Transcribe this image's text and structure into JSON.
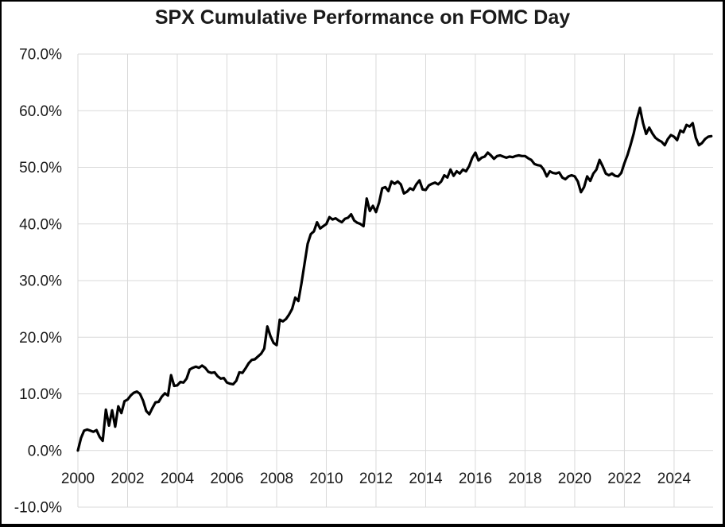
{
  "window": {
    "background": "#ffffff",
    "border_color": "#000000"
  },
  "chart_data": {
    "type": "line",
    "title": "SPX Cumulative Performance on FOMC Day",
    "xlabel": "",
    "ylabel": "",
    "legend_position": "none",
    "grid": true,
    "grid_color": "#d9d9d9",
    "line_color": "#000000",
    "title_color": "#1a1a1a",
    "tick_color": "#1a1a1a",
    "x_axis": {
      "tick_labels": [
        "2000",
        "2002",
        "2004",
        "2006",
        "2008",
        "2010",
        "2012",
        "2014",
        "2016",
        "2018",
        "2020",
        "2022",
        "2024"
      ],
      "tick_values": [
        2000,
        2002,
        2004,
        2006,
        2008,
        2010,
        2012,
        2014,
        2016,
        2018,
        2020,
        2022,
        2024
      ],
      "range": [
        2000,
        2025.57
      ]
    },
    "y_axis": {
      "tick_labels": [
        "70.0%",
        "60.0%",
        "50.0%",
        "40.0%",
        "30.0%",
        "20.0%",
        "10.0%",
        "0.0%",
        "-10.0%"
      ],
      "tick_values": [
        70,
        60,
        50,
        40,
        30,
        20,
        10,
        0,
        -10
      ],
      "range": [
        -10,
        70
      ]
    },
    "series": [
      {
        "unit": "percent",
        "x_start_year": 2000.0,
        "x_step_years": 0.125,
        "values": [
          0.0,
          2.2,
          3.5,
          3.7,
          3.5,
          3.3,
          3.6,
          2.4,
          1.7,
          7.2,
          4.4,
          7.1,
          4.2,
          7.8,
          6.6,
          8.7,
          9.0,
          9.7,
          10.2,
          10.4,
          10.0,
          8.8,
          7.0,
          6.4,
          7.5,
          8.5,
          8.6,
          9.5,
          10.1,
          9.7,
          13.3,
          11.4,
          11.5,
          12.1,
          12.0,
          12.7,
          14.3,
          14.6,
          14.8,
          14.6,
          15.0,
          14.6,
          13.9,
          13.7,
          13.8,
          13.1,
          12.7,
          12.8,
          12.0,
          11.8,
          11.7,
          12.3,
          13.8,
          13.7,
          14.5,
          15.4,
          16.0,
          16.1,
          16.6,
          17.1,
          18.0,
          21.9,
          20.2,
          19.0,
          18.6,
          23.1,
          22.8,
          23.2,
          24.0,
          25.0,
          27.0,
          26.4,
          29.5,
          33.0,
          36.5,
          38.2,
          38.7,
          40.3,
          39.2,
          39.6,
          40.0,
          41.2,
          40.8,
          41.0,
          40.6,
          40.3,
          40.9,
          41.1,
          41.7,
          40.6,
          40.2,
          40.0,
          39.6,
          44.5,
          42.3,
          43.2,
          42.1,
          43.8,
          46.3,
          46.5,
          45.8,
          47.5,
          47.1,
          47.5,
          47.0,
          45.4,
          45.7,
          46.3,
          46.0,
          47.0,
          47.7,
          46.1,
          46.0,
          46.8,
          47.1,
          47.3,
          47.0,
          47.5,
          48.6,
          48.2,
          49.6,
          48.5,
          49.3,
          48.9,
          49.6,
          49.3,
          50.2,
          51.7,
          52.6,
          51.2,
          51.7,
          51.9,
          52.6,
          52.1,
          51.5,
          52.0,
          52.1,
          51.9,
          51.7,
          51.9,
          51.8,
          52.0,
          52.1,
          52.0,
          52.0,
          51.6,
          51.3,
          50.6,
          50.4,
          50.3,
          49.6,
          48.4,
          49.3,
          49.0,
          48.9,
          49.1,
          48.2,
          47.9,
          48.4,
          48.6,
          48.4,
          47.5,
          45.6,
          46.5,
          48.4,
          47.6,
          48.9,
          49.6,
          51.3,
          50.2,
          48.9,
          48.6,
          48.9,
          48.5,
          48.4,
          49.0,
          50.7,
          52.2,
          54.0,
          56.0,
          58.5,
          60.5,
          57.8,
          55.9,
          57.0,
          56.0,
          55.2,
          54.8,
          54.5,
          53.9,
          55.0,
          55.7,
          55.4,
          54.8,
          56.5,
          56.2,
          57.5,
          57.2,
          57.8,
          55.2,
          53.9,
          54.3,
          55.0,
          55.4,
          55.5
        ]
      }
    ]
  }
}
